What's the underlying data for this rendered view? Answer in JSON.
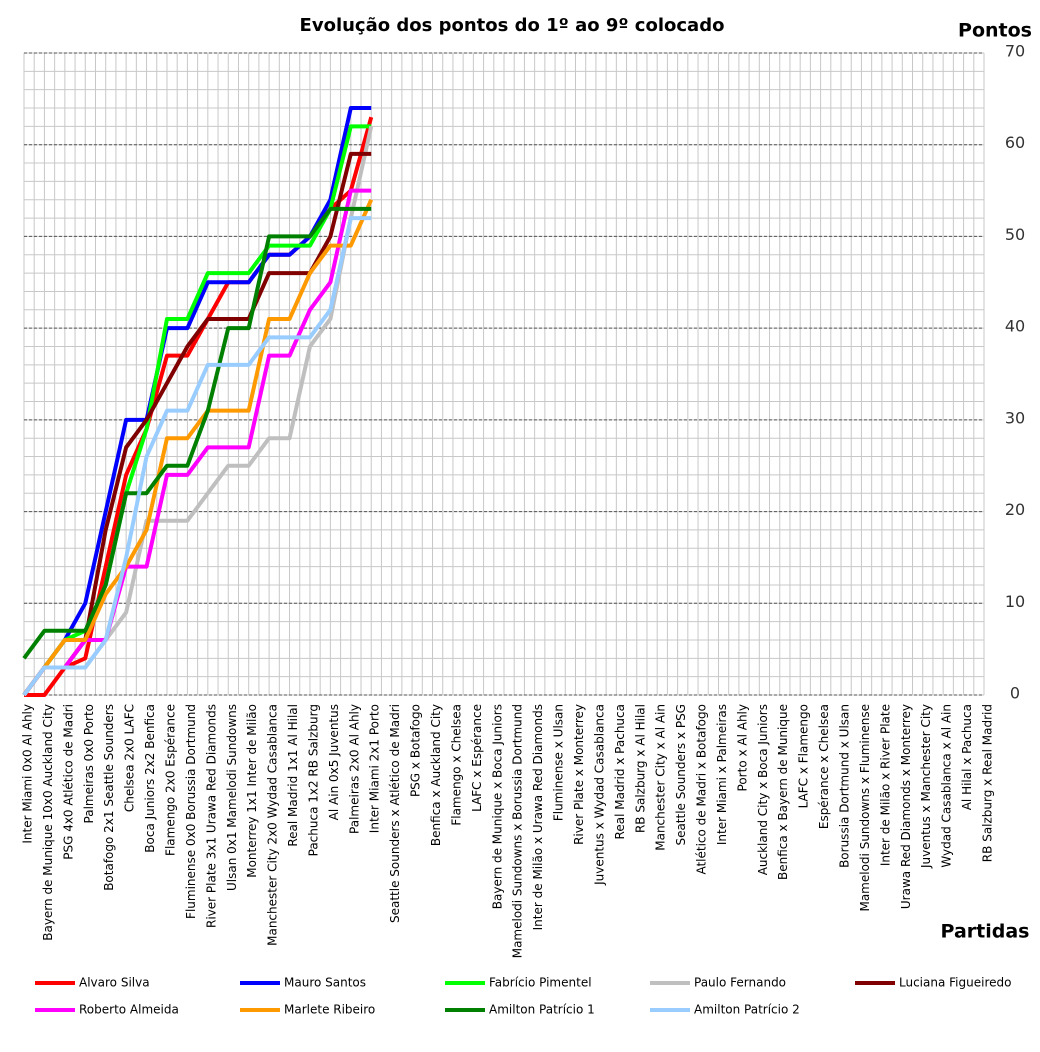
{
  "chart_data": {
    "type": "line",
    "title": "Evolução dos pontos do 1º ao 9º colocado",
    "y_label": "Pontos",
    "x_label": "Partidas",
    "categories": [
      "Inter Miami 0x0 Al Ahly",
      "Bayern de Munique 10x0 Auckland City",
      "PSG 4x0 Atlético de Madri",
      "Palmeiras 0x0 Porto",
      "Botafogo 2x1 Seattle Sounders",
      "Chelsea 2x0 LAFC",
      "Boca Juniors 2x2 Benfica",
      "Flamengo 2x0 Espérance",
      "Fluminense 0x0 Borussia Dortmund",
      "River Plate 3x1 Urawa Red Diamonds",
      "Ulsan 0x1 Mamelodi Sundowns",
      "Monterrey 1x1 Inter de Milão",
      "Manchester City 2x0 Wydad Casablanca",
      "Real Madrid 1x1 Al Hilal",
      "Pachuca 1x2 RB Salzburg",
      "Al Ain 0x5 Juventus",
      "Palmeiras 2x0 Al Ahly",
      "Inter Miami 2x1 Porto",
      "Seattle Sounders x Atlético de Madri",
      "PSG x Botafogo",
      "Benfica x Auckland City",
      "Flamengo x Chelsea",
      "LAFC x Espérance",
      "Bayern de Munique x Boca Juniors",
      "Mamelodi Sundowns x Borussia Dortmund",
      "Inter de Milão x Urawa Red Diamonds",
      "Fluminense x Ulsan",
      "River Plate x Monterrey",
      "Juventus x Wydad Casablanca",
      "Real Madrid x Pachuca",
      "RB Salzburg x Al Hilal",
      "Manchester City x Al Ain",
      "Seattle Sounders x PSG",
      "Atlético de Madri x Botafogo",
      "Inter Miami x Palmeiras",
      "Porto x Al Ahly",
      "Auckland City x Boca Juniors",
      "Benfica x Bayern de Munique",
      "LAFC x Flamengo",
      "Espérance x Chelsea",
      "Borussia Dortmund x Ulsan",
      "Mamelodi Sundowns x Fluminense",
      "Inter de Milão x River Plate",
      "Urawa Red Diamonds x Monterrey",
      "Juventus x Manchester City",
      "Wydad Casablanca x Al Ain",
      "Al Hilal x Pachuca",
      "RB Salzburg x Real Madrid"
    ],
    "series": [
      {
        "name": "Alvaro Silva",
        "color": "#ff0000",
        "values": [
          0,
          0,
          3,
          4,
          14,
          24,
          29,
          37,
          37,
          41,
          45,
          45,
          48,
          48,
          50,
          53,
          55,
          63,
          null,
          null,
          null,
          null,
          null,
          null,
          null,
          null,
          null,
          null,
          null,
          null,
          null,
          null,
          null,
          null,
          null,
          null,
          null,
          null,
          null,
          null,
          null,
          null,
          null,
          null,
          null,
          null,
          null,
          null
        ]
      },
      {
        "name": "Mauro Santos",
        "color": "#0000ff",
        "values": [
          0,
          3,
          6,
          10,
          20,
          30,
          30,
          40,
          40,
          45,
          45,
          45,
          48,
          48,
          50,
          54,
          64,
          64,
          null,
          null,
          null,
          null,
          null,
          null,
          null,
          null,
          null,
          null,
          null,
          null,
          null,
          null,
          null,
          null,
          null,
          null,
          null,
          null,
          null,
          null,
          null,
          null,
          null,
          null,
          null,
          null,
          null,
          null
        ]
      },
      {
        "name": "Fabrício Pimentel",
        "color": "#00ff00",
        "values": [
          0,
          3,
          6,
          7,
          12,
          22,
          29,
          41,
          41,
          46,
          46,
          46,
          49,
          49,
          49,
          53,
          62,
          62,
          null,
          null,
          null,
          null,
          null,
          null,
          null,
          null,
          null,
          null,
          null,
          null,
          null,
          null,
          null,
          null,
          null,
          null,
          null,
          null,
          null,
          null,
          null,
          null,
          null,
          null,
          null,
          null,
          null,
          null
        ]
      },
      {
        "name": "Paulo Fernando",
        "color": "#bfbfbf",
        "values": [
          0,
          3,
          3,
          3,
          6,
          9,
          19,
          19,
          19,
          22,
          25,
          25,
          28,
          28,
          38,
          41,
          52,
          62,
          null,
          null,
          null,
          null,
          null,
          null,
          null,
          null,
          null,
          null,
          null,
          null,
          null,
          null,
          null,
          null,
          null,
          null,
          null,
          null,
          null,
          null,
          null,
          null,
          null,
          null,
          null,
          null,
          null,
          null
        ]
      },
      {
        "name": "Luciana Figueiredo",
        "color": "#800000",
        "values": [
          0,
          3,
          3,
          6,
          18,
          27,
          30,
          34,
          38,
          41,
          41,
          41,
          46,
          46,
          46,
          50,
          59,
          59,
          null,
          null,
          null,
          null,
          null,
          null,
          null,
          null,
          null,
          null,
          null,
          null,
          null,
          null,
          null,
          null,
          null,
          null,
          null,
          null,
          null,
          null,
          null,
          null,
          null,
          null,
          null,
          null,
          null,
          null
        ]
      },
      {
        "name": "Roberto Almeida",
        "color": "#ff00ff",
        "values": [
          0,
          3,
          3,
          6,
          6,
          14,
          14,
          24,
          24,
          27,
          27,
          27,
          37,
          37,
          42,
          45,
          55,
          55,
          null,
          null,
          null,
          null,
          null,
          null,
          null,
          null,
          null,
          null,
          null,
          null,
          null,
          null,
          null,
          null,
          null,
          null,
          null,
          null,
          null,
          null,
          null,
          null,
          null,
          null,
          null,
          null,
          null,
          null
        ]
      },
      {
        "name": "Marlete Ribeiro",
        "color": "#ff9900",
        "values": [
          0,
          3,
          6,
          6,
          11,
          14,
          18,
          28,
          28,
          31,
          31,
          31,
          41,
          41,
          46,
          49,
          49,
          54,
          null,
          null,
          null,
          null,
          null,
          null,
          null,
          null,
          null,
          null,
          null,
          null,
          null,
          null,
          null,
          null,
          null,
          null,
          null,
          null,
          null,
          null,
          null,
          null,
          null,
          null,
          null,
          null,
          null,
          null
        ]
      },
      {
        "name": "Amilton Patrício 1",
        "color": "#008000",
        "values": [
          4,
          7,
          7,
          7,
          12,
          22,
          22,
          25,
          25,
          31,
          40,
          40,
          50,
          50,
          50,
          53,
          53,
          53,
          null,
          null,
          null,
          null,
          null,
          null,
          null,
          null,
          null,
          null,
          null,
          null,
          null,
          null,
          null,
          null,
          null,
          null,
          null,
          null,
          null,
          null,
          null,
          null,
          null,
          null,
          null,
          null,
          null,
          null
        ]
      },
      {
        "name": "Amilton Patrício 2",
        "color": "#99ccff",
        "values": [
          0,
          3,
          3,
          3,
          6,
          15,
          26,
          31,
          31,
          36,
          36,
          36,
          39,
          39,
          39,
          42,
          52,
          52,
          null,
          null,
          null,
          null,
          null,
          null,
          null,
          null,
          null,
          null,
          null,
          null,
          null,
          null,
          null,
          null,
          null,
          null,
          null,
          null,
          null,
          null,
          null,
          null,
          null,
          null,
          null,
          null,
          null,
          null
        ]
      }
    ],
    "ylim": [
      0,
      70
    ],
    "yticks": [
      0,
      10,
      20,
      30,
      40,
      50,
      60,
      70
    ],
    "grid": true
  }
}
